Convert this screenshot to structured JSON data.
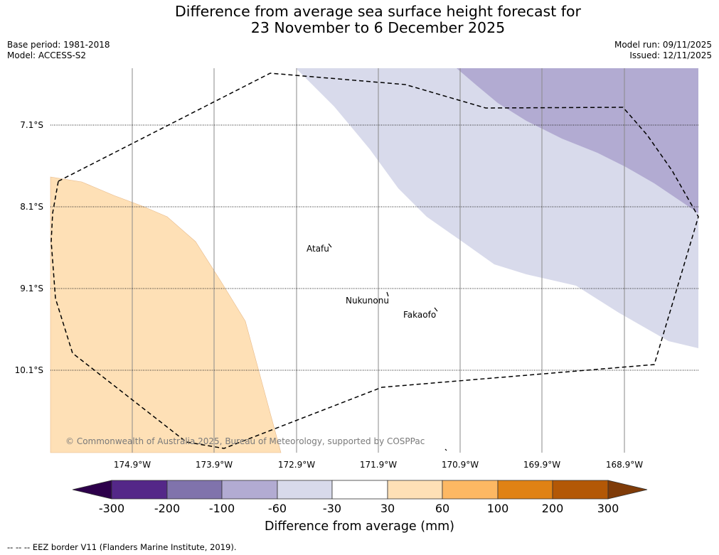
{
  "title": {
    "line1": "Difference from average sea surface height forecast for",
    "line2": "23 November to 6 December 2025"
  },
  "meta": {
    "base_period": "Base period: 1981-2018",
    "model": "Model: ACCESS-S2",
    "model_run": "Model run: 09/11/2025",
    "issued": "Issued: 12/11/2025"
  },
  "map": {
    "latitudes": [
      "7.1°S",
      "8.1°S",
      "9.1°S",
      "10.1°S"
    ],
    "longitudes": [
      "174.9°W",
      "173.9°W",
      "172.9°W",
      "171.9°W",
      "170.9°W",
      "169.9°W",
      "168.9°W"
    ],
    "places": [
      "Atafu",
      "Nukunonu",
      "Fakaofo"
    ],
    "copyright": "© Commonwealth of Australia 2025, Bureau of Meteorology, supported by COSPPac"
  },
  "colorbar": {
    "ticks": [
      "-300",
      "-200",
      "-100",
      "-60",
      "-30",
      "30",
      "60",
      "100",
      "200",
      "300"
    ],
    "colors": [
      "#2d004b",
      "#542788",
      "#8073ac",
      "#b2abd2",
      "#d8daeb",
      "#ffffff",
      "#fee0b6",
      "#fdb863",
      "#e08214",
      "#b35806",
      "#7f3b08"
    ],
    "label": "Difference from average (mm)"
  },
  "legend": {
    "footnote": "-- -- -- EEZ border V11 (Flanders Marine Institute, 2019)."
  },
  "palette": {
    "purple_light": "#d8daeb",
    "purple_mid": "#b2abd2",
    "orange_light": "#fee0b6"
  }
}
